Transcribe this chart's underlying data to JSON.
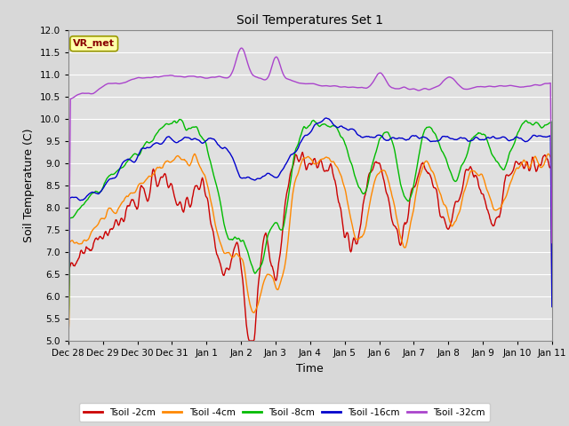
{
  "title": "Soil Temperatures Set 1",
  "xlabel": "Time",
  "ylabel": "Soil Temperature (C)",
  "ylim": [
    5.0,
    12.0
  ],
  "yticks": [
    5.0,
    5.5,
    6.0,
    6.5,
    7.0,
    7.5,
    8.0,
    8.5,
    9.0,
    9.5,
    10.0,
    10.5,
    11.0,
    11.5,
    12.0
  ],
  "colors": {
    "t2": "#cc0000",
    "t4": "#ff8800",
    "t8": "#00bb00",
    "t16": "#0000cc",
    "t32": "#aa44cc"
  },
  "fig_bg": "#d8d8d8",
  "plot_bg": "#e0e0e0",
  "grid_color": "#ffffff",
  "annotation_text": "VR_met",
  "annotation_fg": "#880000",
  "annotation_bg": "#ffffaa",
  "annotation_border": "#999900",
  "xtick_labels": [
    "Dec 28",
    "Dec 29",
    "Dec 30",
    "Dec 31",
    "Jan 1",
    "Jan 2",
    "Jan 3",
    "Jan 4",
    "Jan 5",
    "Jan 6",
    "Jan 7",
    "Jan 8",
    "Jan 9",
    "Jan 10",
    "Jan 11"
  ],
  "legend_labels": [
    "Tsoil -2cm",
    "Tsoil -4cm",
    "Tsoil -8cm",
    "Tsoil -16cm",
    "Tsoil -32cm"
  ],
  "n_points": 672,
  "line_width": 1.0
}
